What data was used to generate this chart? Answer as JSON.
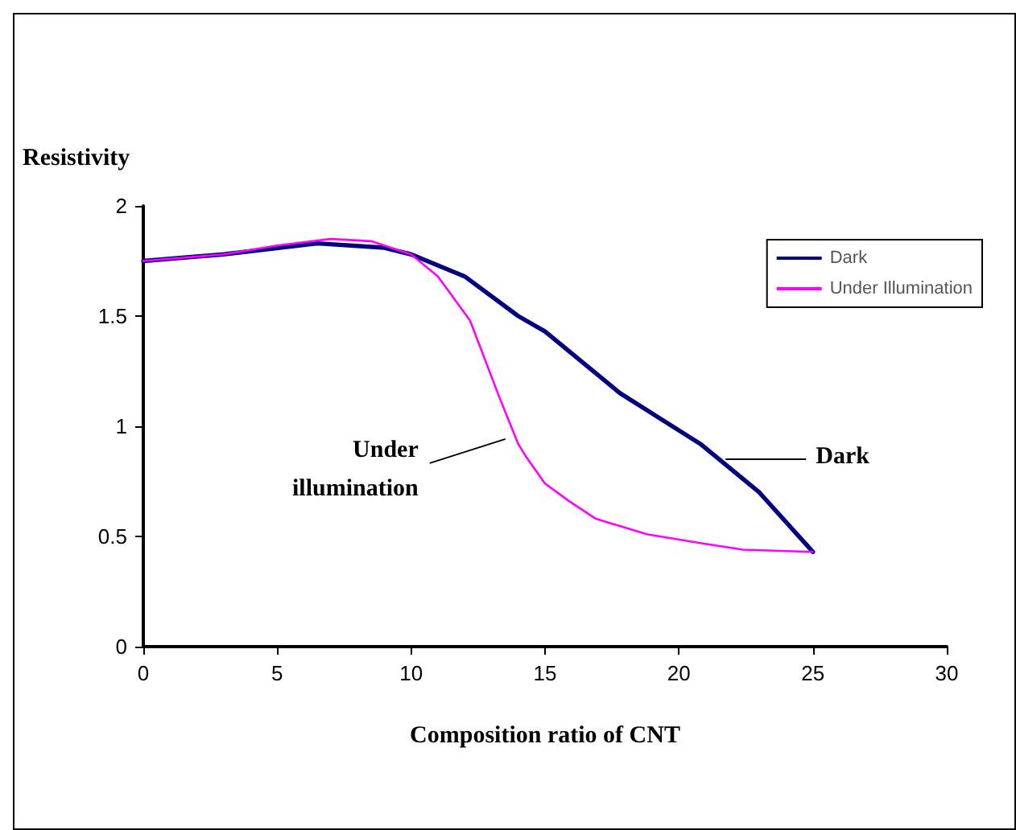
{
  "chart_data": {
    "type": "line",
    "xlabel": "Composition ratio of CNT",
    "ylabel": "Resistivity",
    "xlim": [
      0,
      30
    ],
    "xticks": [
      0,
      5,
      10,
      15,
      20,
      25,
      30
    ],
    "ylim": [
      0,
      2
    ],
    "yticks": [
      0,
      0.5,
      1,
      1.5,
      2
    ],
    "grid": false,
    "legend": "top right",
    "marker": "none",
    "line_style": "solid",
    "series": [
      {
        "name": "Dark",
        "color": "#000080",
        "x": [
          0,
          3,
          6.5,
          9,
          10,
          12,
          14,
          15,
          17.8,
          20.8,
          23,
          25
        ],
        "values": [
          1.75,
          1.78,
          1.83,
          1.81,
          1.78,
          1.68,
          1.5,
          1.43,
          1.15,
          0.92,
          0.7,
          0.43
        ]
      },
      {
        "name": "Under Illumination",
        "color": "#ff00ff",
        "x": [
          0,
          3,
          5,
          7,
          8.5,
          10,
          11,
          12.2,
          13.3,
          14,
          14.3,
          15,
          15.9,
          16.9,
          18.8,
          20.8,
          22.4,
          25
        ],
        "values": [
          1.75,
          1.78,
          1.82,
          1.85,
          1.84,
          1.78,
          1.68,
          1.48,
          1.13,
          0.92,
          0.86,
          0.74,
          0.66,
          0.58,
          0.51,
          0.47,
          0.44,
          0.43
        ]
      }
    ],
    "annotations": [
      {
        "text": "Under\nillumination",
        "x": 14,
        "y": 0.92
      },
      {
        "text": "Dark",
        "x": 21.5,
        "y": 0.85
      }
    ]
  }
}
